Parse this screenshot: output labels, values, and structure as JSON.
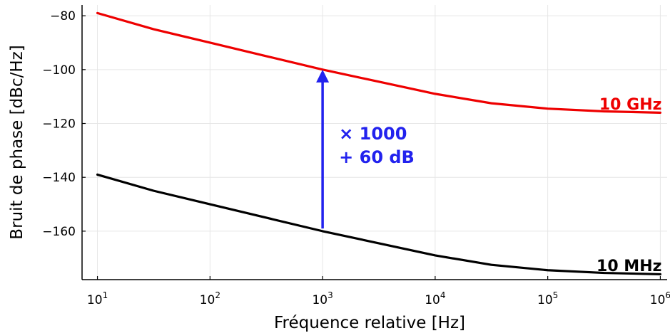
{
  "chart_data": {
    "type": "line",
    "title": "",
    "xlabel": "Fréquence relative [Hz]",
    "ylabel": "Bruit de phase [dBc/Hz]",
    "xscale": "log",
    "xlim": [
      7.3,
      1150000
    ],
    "ylim": [
      -178,
      -76
    ],
    "grid": true,
    "legend": "none",
    "x_ticks": [
      {
        "value": 10,
        "base": "10",
        "exp": "1"
      },
      {
        "value": 100,
        "base": "10",
        "exp": "2"
      },
      {
        "value": 1000,
        "base": "10",
        "exp": "3"
      },
      {
        "value": 10000,
        "base": "10",
        "exp": "4"
      },
      {
        "value": 100000,
        "base": "10",
        "exp": "5"
      },
      {
        "value": 1000000,
        "base": "10",
        "exp": "6"
      }
    ],
    "y_ticks": [
      {
        "value": -80,
        "label": "−80"
      },
      {
        "value": -100,
        "label": "−100"
      },
      {
        "value": -120,
        "label": "−120"
      },
      {
        "value": -140,
        "label": "−140"
      },
      {
        "value": -160,
        "label": "−160"
      }
    ],
    "series": [
      {
        "name": "10 GHz",
        "color": "#ee0000",
        "x": [
          10,
          31.6,
          100,
          316,
          1000,
          3160,
          10000,
          31600,
          100000,
          316000,
          1000000
        ],
        "y": [
          -79,
          -85,
          -90,
          -95,
          -100,
          -104.5,
          -109,
          -112.5,
          -114.5,
          -115.5,
          -116
        ]
      },
      {
        "name": "10 MHz",
        "color": "#000000",
        "x": [
          10,
          31.6,
          100,
          316,
          1000,
          3160,
          10000,
          31600,
          100000,
          316000,
          1000000
        ],
        "y": [
          -139,
          -145,
          -150,
          -155,
          -160,
          -164.5,
          -169,
          -172.5,
          -174.5,
          -175.5,
          -176
        ]
      }
    ],
    "series_labels": [
      {
        "text": "10 GHz",
        "color": "#ee0000",
        "x": 1000000,
        "y": -113
      },
      {
        "text": "10 MHz",
        "color": "#000000",
        "x": 1000000,
        "y": -173
      }
    ],
    "annotations": [
      {
        "type": "arrow",
        "color": "#2222ee",
        "x": 1000,
        "y_from": -159,
        "y_to": -100
      },
      {
        "type": "text",
        "color": "#2222ee",
        "lines": [
          "× 1000",
          "+ 60 dB"
        ],
        "x": 1400,
        "y": -126
      }
    ]
  }
}
